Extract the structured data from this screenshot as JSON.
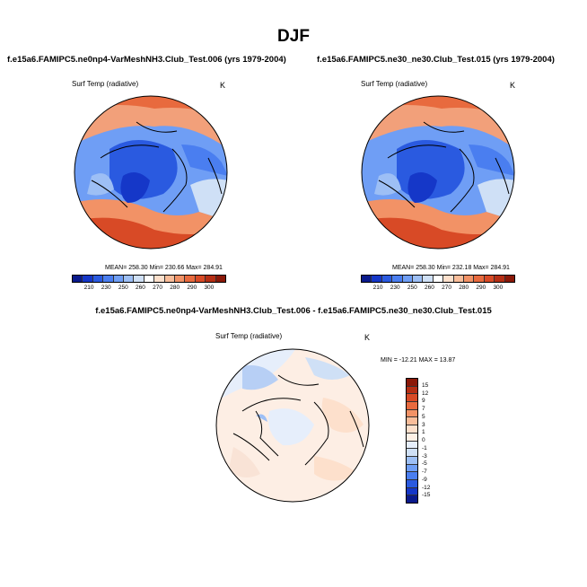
{
  "title": "DJF",
  "panel_left": {
    "title": "f.e15a6.FAMIPC5.ne0np4-VarMeshNH3.Club_Test.006 (yrs 1979-2004)",
    "variable": "Surf Temp (radiative)",
    "units": "K",
    "stats": "MEAN= 258.30  Min= 230.66  Max= 284.91"
  },
  "panel_right": {
    "title": "f.e15a6.FAMIPC5.ne30_ne30.Club_Test.015 (yrs 1979-2004)",
    "variable": "Surf Temp (radiative)",
    "units": "K",
    "stats": "MEAN= 258.30  Min= 232.18  Max= 284.91"
  },
  "panel_diff": {
    "title": "f.e15a6.FAMIPC5.ne0np4-VarMeshNH3.Club_Test.006 - f.e15a6.FAMIPC5.ne30_ne30.Club_Test.015",
    "variable": "Surf Temp (radiative)",
    "units": "K",
    "stats": "MIN = -12.21  MAX =  13.87"
  },
  "abs_colorbar": {
    "labels": [
      "210",
      "230",
      "250",
      "260",
      "270",
      "280",
      "290",
      "300"
    ],
    "colors": [
      "#0a1a8c",
      "#1537c8",
      "#2a5ae0",
      "#4a7ef0",
      "#6f9ef5",
      "#9dbff5",
      "#cfe0f6",
      "#ffffff",
      "#fde0cc",
      "#f9bd9a",
      "#f29266",
      "#e86a3e",
      "#d84a26",
      "#b52e14",
      "#8a1808"
    ]
  },
  "diff_colorbar": {
    "labels": [
      "15",
      "12",
      "9",
      "7",
      "5",
      "3",
      "1",
      "0",
      "-1",
      "-3",
      "-5",
      "-7",
      "-9",
      "-12",
      "-15"
    ],
    "colors": [
      "#8a1808",
      "#b52e14",
      "#d84a26",
      "#e86a3e",
      "#f29266",
      "#f9bd9a",
      "#fde0cc",
      "#fff1e6",
      "#e6eefb",
      "#cfe0f6",
      "#9dbff5",
      "#6f9ef5",
      "#4a7ef0",
      "#2a5ae0",
      "#1537c8",
      "#0a1a8c"
    ]
  }
}
